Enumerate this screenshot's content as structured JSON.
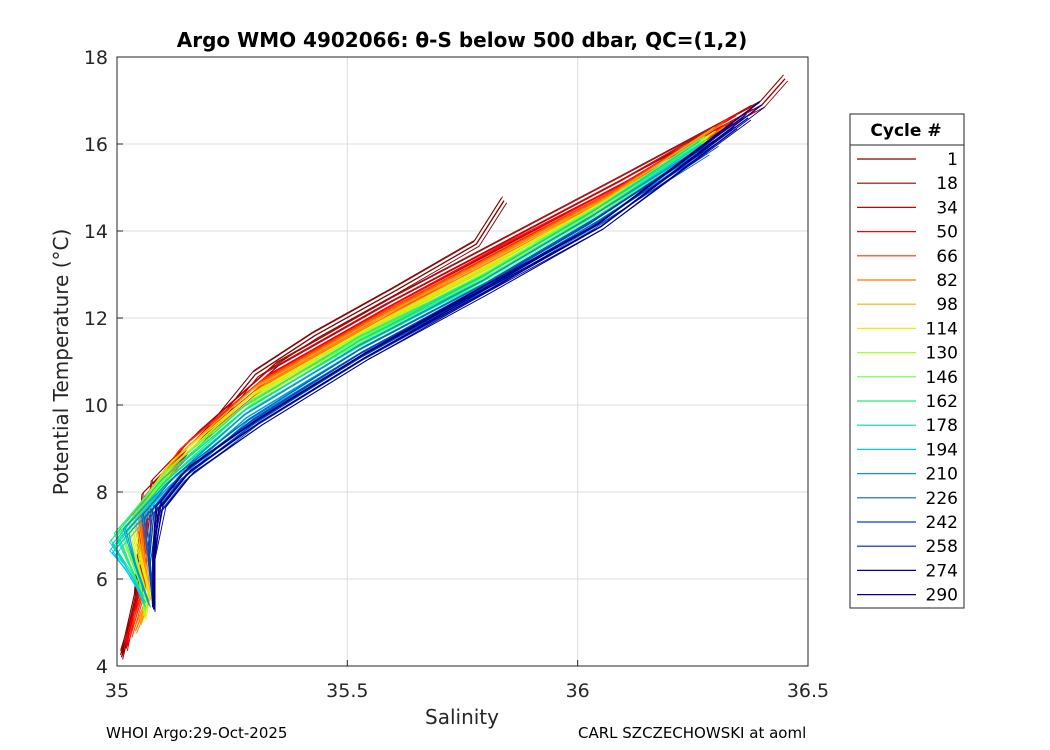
{
  "chart_data": {
    "type": "line",
    "title": "Argo WMO 4902066: θ-S below 500 dbar,  QC=(1,2)",
    "xlabel": "Salinity",
    "ylabel": "Potential Temperature (°C)",
    "xlim": [
      35,
      36.5
    ],
    "ylim": [
      4,
      18
    ],
    "xticks": [
      35,
      35.5,
      36,
      36.5
    ],
    "xtick_labels": [
      "35",
      "35.5",
      "36",
      "36.5"
    ],
    "yticks": [
      4,
      6,
      8,
      10,
      12,
      14,
      16,
      18
    ],
    "ytick_labels": [
      "4",
      "6",
      "8",
      "10",
      "12",
      "14",
      "16",
      "18"
    ],
    "grid": true,
    "legend": {
      "title": "Cycle #",
      "placement": "outside-right",
      "entries": [
        "1",
        "18",
        "34",
        "50",
        "66",
        "82",
        "98",
        "114",
        "130",
        "146",
        "162",
        "178",
        "194",
        "210",
        "226",
        "242",
        "258",
        "274",
        "290"
      ]
    },
    "colormap": "jet (reversed: early cycles dark red, late cycles dark blue)",
    "representative_profiles": [
      {
        "cycle": "1",
        "color": "#7f0000",
        "s": [
          35.01,
          35.04,
          35.06,
          35.2,
          35.3,
          35.43,
          35.6,
          35.78,
          35.84
        ],
        "t": [
          4.2,
          5.6,
          7.9,
          9.4,
          10.7,
          11.6,
          12.6,
          13.7,
          14.7
        ]
      },
      {
        "cycle": "18",
        "color": "#990000",
        "s": [
          35.01,
          35.05,
          35.08,
          35.18,
          35.35,
          35.6,
          35.85,
          36.1,
          36.4,
          36.45
        ],
        "t": [
          4.3,
          5.7,
          8.2,
          9.3,
          10.9,
          12.4,
          13.8,
          15.2,
          16.9,
          17.5
        ]
      },
      {
        "cycle": "34",
        "color": "#cc0000",
        "s": [
          35.02,
          35.05,
          35.07,
          35.16,
          35.33,
          35.58,
          35.85,
          36.1,
          36.38
        ],
        "t": [
          4.4,
          5.9,
          7.9,
          9.1,
          10.7,
          12.2,
          13.7,
          15.1,
          16.8
        ]
      },
      {
        "cycle": "50",
        "color": "#ff0000",
        "s": [
          35.02,
          35.06,
          35.06,
          35.15,
          35.33,
          35.58,
          35.84,
          36.1,
          36.35
        ],
        "t": [
          4.5,
          5.9,
          7.7,
          9.0,
          10.6,
          12.1,
          13.6,
          15.0,
          16.6
        ]
      },
      {
        "cycle": "66",
        "color": "#ff3300",
        "s": [
          35.03,
          35.06,
          35.05,
          35.14,
          35.32,
          35.57,
          35.84,
          36.09,
          36.33
        ],
        "t": [
          4.7,
          5.8,
          7.6,
          8.9,
          10.5,
          12.0,
          13.5,
          14.9,
          16.5
        ]
      },
      {
        "cycle": "82",
        "color": "#ff7700",
        "s": [
          35.04,
          35.07,
          35.05,
          35.14,
          35.31,
          35.56,
          35.83,
          36.08,
          36.32
        ],
        "t": [
          4.8,
          5.6,
          7.5,
          8.8,
          10.4,
          11.9,
          13.4,
          14.8,
          16.4
        ]
      },
      {
        "cycle": "98",
        "color": "#ffaa00",
        "s": [
          35.05,
          35.07,
          35.04,
          35.13,
          35.3,
          35.55,
          35.82,
          36.07,
          36.3
        ],
        "t": [
          5.0,
          5.6,
          7.4,
          8.7,
          10.3,
          11.8,
          13.3,
          14.7,
          16.3
        ]
      },
      {
        "cycle": "114",
        "color": "#eeee00",
        "s": [
          35.06,
          35.07,
          35.03,
          35.12,
          35.3,
          35.55,
          35.82,
          36.06,
          36.3
        ],
        "t": [
          5.1,
          5.7,
          7.3,
          8.6,
          10.2,
          11.7,
          13.2,
          14.6,
          16.2
        ]
      },
      {
        "cycle": "130",
        "color": "#aaff22",
        "s": [
          35.06,
          35.06,
          35.02,
          35.12,
          35.29,
          35.54,
          35.81,
          36.05,
          36.29
        ],
        "t": [
          5.2,
          5.8,
          7.2,
          8.5,
          10.1,
          11.6,
          13.1,
          14.5,
          16.1
        ]
      },
      {
        "cycle": "146",
        "color": "#66ff44",
        "s": [
          35.06,
          35.05,
          35.01,
          35.11,
          35.29,
          35.54,
          35.81,
          36.05,
          36.28
        ],
        "t": [
          5.3,
          5.9,
          7.1,
          8.4,
          10.0,
          11.5,
          13.0,
          14.5,
          16.1
        ]
      },
      {
        "cycle": "162",
        "color": "#22ee77",
        "s": [
          35.06,
          35.04,
          35.0,
          35.11,
          35.28,
          35.53,
          35.8,
          36.04,
          36.28
        ],
        "t": [
          5.4,
          6.0,
          7.0,
          8.3,
          9.9,
          11.5,
          12.9,
          14.4,
          16.0
        ]
      },
      {
        "cycle": "178",
        "color": "#00ddaa",
        "s": [
          35.06,
          35.03,
          34.99,
          35.1,
          35.28,
          35.53,
          35.8,
          36.04,
          36.27
        ],
        "t": [
          5.4,
          6.1,
          6.8,
          8.2,
          9.8,
          11.4,
          12.9,
          14.4,
          16.0
        ]
      },
      {
        "cycle": "194",
        "color": "#00ccee",
        "s": [
          35.06,
          35.02,
          34.99,
          35.11,
          35.28,
          35.53,
          35.8,
          36.04,
          36.27
        ],
        "t": [
          5.5,
          6.2,
          6.6,
          8.1,
          9.7,
          11.3,
          12.8,
          14.3,
          15.9
        ]
      },
      {
        "cycle": "210",
        "color": "#0099dd",
        "s": [
          35.07,
          35.04,
          35.02,
          35.11,
          35.28,
          35.53,
          35.8,
          36.04,
          36.28
        ],
        "t": [
          5.4,
          6.3,
          7.1,
          8.1,
          9.7,
          11.3,
          12.8,
          14.3,
          15.9
        ]
      },
      {
        "cycle": "226",
        "color": "#0066cc",
        "s": [
          35.08,
          35.07,
          35.06,
          35.13,
          35.29,
          35.53,
          35.8,
          36.04,
          36.28
        ],
        "t": [
          5.4,
          6.4,
          7.4,
          8.3,
          9.6,
          11.2,
          12.7,
          14.2,
          15.8
        ]
      },
      {
        "cycle": "242",
        "color": "#0044bb",
        "s": [
          35.08,
          35.07,
          35.08,
          35.14,
          35.3,
          35.53,
          35.79,
          36.03,
          36.3
        ],
        "t": [
          5.3,
          6.4,
          7.5,
          8.3,
          9.6,
          11.1,
          12.6,
          14.1,
          16.0
        ]
      },
      {
        "cycle": "258",
        "color": "#0022aa",
        "s": [
          35.08,
          35.08,
          35.09,
          35.15,
          35.31,
          35.54,
          35.8,
          36.05,
          36.34
        ],
        "t": [
          5.3,
          6.5,
          7.6,
          8.4,
          9.6,
          11.1,
          12.6,
          14.1,
          16.4
        ]
      },
      {
        "cycle": "274",
        "color": "#000099",
        "s": [
          35.08,
          35.08,
          35.1,
          35.16,
          35.31,
          35.54,
          35.8,
          36.05,
          36.37
        ],
        "t": [
          5.3,
          6.5,
          7.7,
          8.5,
          9.6,
          11.1,
          12.6,
          14.1,
          16.6
        ]
      },
      {
        "cycle": "290",
        "color": "#000080",
        "s": [
          35.08,
          35.08,
          35.09,
          35.16,
          35.31,
          35.54,
          35.79,
          36.05,
          36.4
        ],
        "t": [
          5.3,
          6.6,
          7.6,
          8.5,
          9.6,
          11.1,
          12.6,
          14.1,
          16.9
        ]
      }
    ]
  },
  "footer": {
    "left": "WHOI Argo:29-Oct-2025",
    "right": "CARL SZCZECHOWSKI at aoml"
  }
}
